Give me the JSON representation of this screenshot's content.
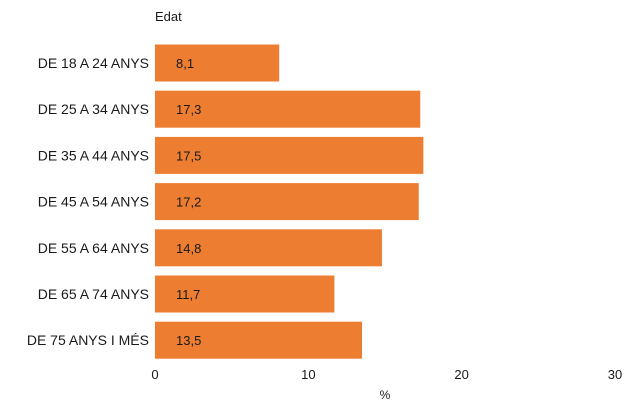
{
  "chart_data": {
    "type": "bar",
    "orientation": "horizontal",
    "title": "Edat",
    "xlabel": "%",
    "ylabel": "",
    "categories": [
      "DE 18 A 24 ANYS",
      "DE 25 A 34 ANYS",
      "DE 35 A 44 ANYS",
      "DE 45 A 54 ANYS",
      "DE 55 A 64 ANYS",
      "DE 65 A 74 ANYS",
      "DE 75 ANYS I MÉS"
    ],
    "values": [
      8.1,
      17.3,
      17.5,
      17.2,
      14.8,
      11.7,
      13.5
    ],
    "data_labels": [
      "8,1",
      "17,3",
      "17,5",
      "17,2",
      "14,8",
      "11,7",
      "13,5"
    ],
    "xlim": [
      0,
      30
    ],
    "xticks": [
      0,
      10,
      20,
      30
    ],
    "xtick_labels": [
      "0",
      "10",
      "20",
      "30"
    ],
    "grid": false,
    "legend": "none",
    "bar_color": "#ED7D31"
  }
}
